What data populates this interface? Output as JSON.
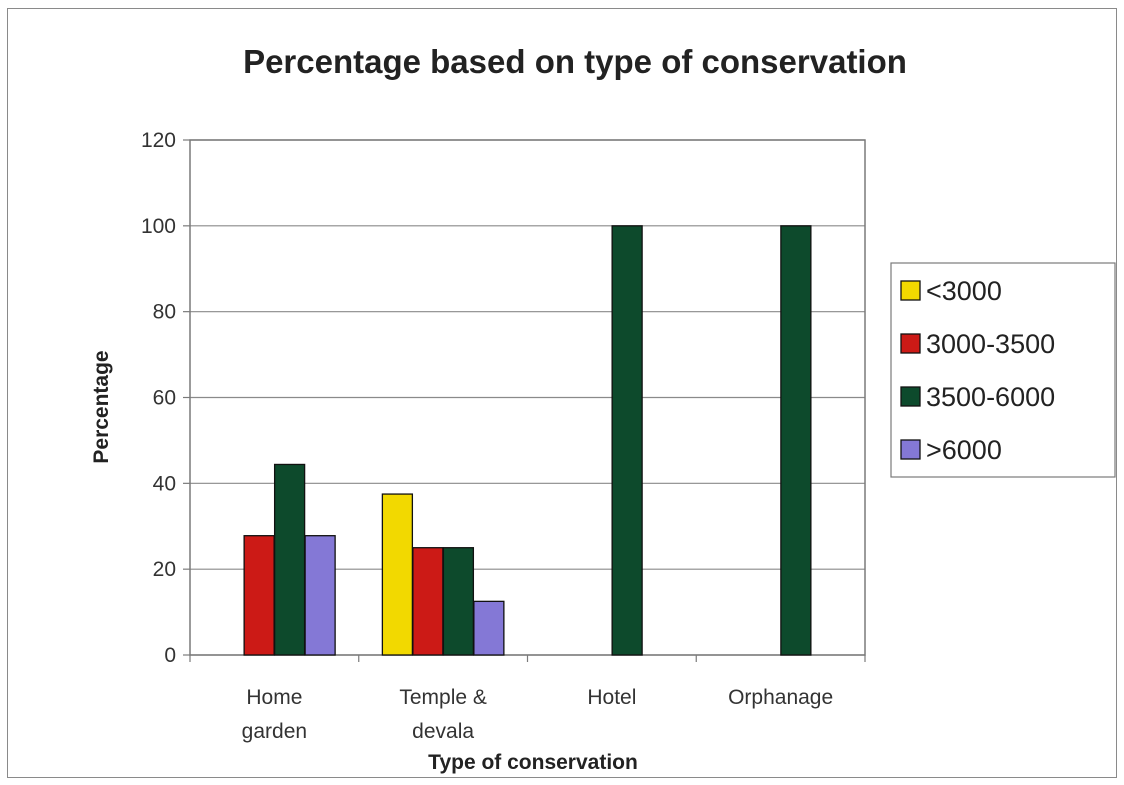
{
  "chart_data": {
    "type": "bar",
    "title": "Percentage based on type of conservation",
    "xlabel": "Type of conservation",
    "ylabel": "Percentage",
    "categories": [
      [
        "Home",
        "garden"
      ],
      [
        "Temple &",
        "devala"
      ],
      [
        "Hotel"
      ],
      [
        "Orphanage"
      ]
    ],
    "series": [
      {
        "name": "<3000",
        "values": [
          0,
          37.5,
          0,
          0
        ],
        "color": "#f2d900"
      },
      {
        "name": "3000-3500",
        "values": [
          27.8,
          25,
          0,
          0
        ],
        "color": "#cc1a16"
      },
      {
        "name": "3500-6000",
        "values": [
          44.4,
          25,
          100,
          100
        ],
        "color": "#0d4a2c"
      },
      {
        "name": ">6000",
        "values": [
          27.8,
          12.5,
          0,
          0
        ],
        "color": "#8478d6"
      }
    ],
    "ylim": [
      0,
      120
    ],
    "yticks": [
      0,
      20,
      40,
      60,
      80,
      100,
      120
    ],
    "grid": true,
    "legend": "right"
  }
}
